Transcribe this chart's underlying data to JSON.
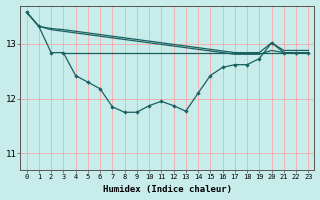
{
  "xlabel": "Humidex (Indice chaleur)",
  "bg_color": "#c8ecea",
  "grid_color": "#f5aaaa",
  "line_color": "#1a6060",
  "xlim": [
    -0.5,
    23.5
  ],
  "ylim": [
    10.7,
    13.7
  ],
  "yticks": [
    11,
    12,
    13
  ],
  "xticks": [
    0,
    1,
    2,
    3,
    4,
    5,
    6,
    7,
    8,
    9,
    10,
    11,
    12,
    13,
    14,
    15,
    16,
    17,
    18,
    19,
    20,
    21,
    22,
    23
  ],
  "upper1_x": [
    0,
    1,
    2,
    3,
    4,
    5,
    6,
    7,
    8,
    9,
    10,
    11,
    12,
    13,
    14,
    15,
    16,
    17,
    18,
    19,
    20,
    21,
    22,
    23
  ],
  "upper1_y": [
    13.58,
    13.32,
    13.28,
    13.26,
    13.23,
    13.2,
    13.17,
    13.14,
    13.11,
    13.08,
    13.05,
    13.02,
    12.99,
    12.96,
    12.93,
    12.9,
    12.87,
    12.84,
    12.84,
    12.84,
    13.02,
    12.88,
    12.88,
    12.88
  ],
  "upper2_x": [
    0,
    1,
    2,
    3,
    4,
    5,
    6,
    7,
    8,
    9,
    10,
    11,
    12,
    13,
    14,
    15,
    16,
    17,
    18,
    19,
    20,
    21,
    22,
    23
  ],
  "upper2_y": [
    13.58,
    13.32,
    13.26,
    13.23,
    13.2,
    13.17,
    13.14,
    13.11,
    13.08,
    13.05,
    13.02,
    12.99,
    12.96,
    12.93,
    12.9,
    12.87,
    12.84,
    12.81,
    12.81,
    12.81,
    12.88,
    12.84,
    12.84,
    12.84
  ],
  "flat_y": 12.84,
  "flat_x_start": 3,
  "flat_x_end": 23,
  "lower_x": [
    0,
    1,
    2,
    3,
    4,
    5,
    6,
    7,
    8,
    9,
    10,
    11,
    12,
    13,
    14,
    15,
    16,
    17,
    18,
    19,
    20,
    21,
    22,
    23
  ],
  "lower_y": [
    13.58,
    13.32,
    12.84,
    12.84,
    12.42,
    12.3,
    12.18,
    11.85,
    11.75,
    11.75,
    11.87,
    11.95,
    11.87,
    11.77,
    12.1,
    12.42,
    12.57,
    12.62,
    12.62,
    12.73,
    13.02,
    12.84,
    12.84,
    12.84
  ]
}
